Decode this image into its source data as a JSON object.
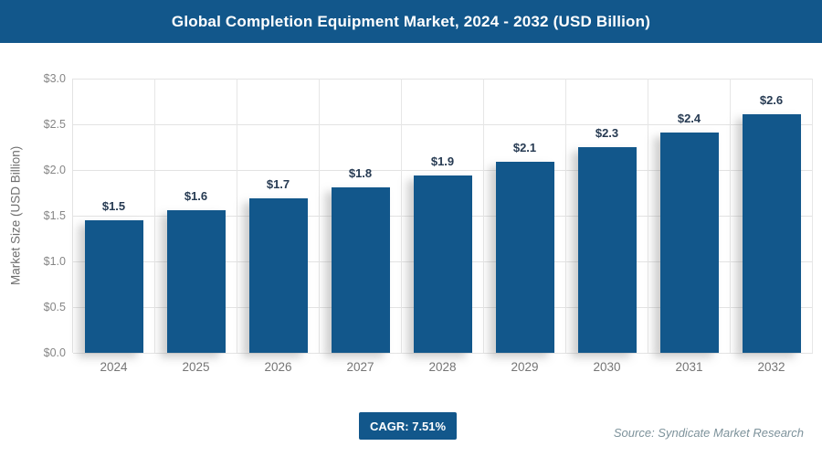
{
  "header": {
    "title": "Global Completion Equipment Market, 2024 - 2032 (USD Billion)"
  },
  "chart_data": {
    "type": "bar",
    "title": "Global Completion Equipment Market, 2024 - 2032 (USD Billion)",
    "categories": [
      "2024",
      "2025",
      "2026",
      "2027",
      "2028",
      "2029",
      "2030",
      "2031",
      "2032"
    ],
    "values": [
      1.5,
      1.6,
      1.7,
      1.8,
      1.9,
      2.1,
      2.3,
      2.4,
      2.6
    ],
    "value_labels": [
      "$1.5",
      "$1.6",
      "$1.7",
      "$1.8",
      "$1.9",
      "$2.1",
      "$2.3",
      "$2.4",
      "$2.6"
    ],
    "plotted_values": [
      1.45,
      1.56,
      1.69,
      1.81,
      1.94,
      2.09,
      2.25,
      2.41,
      2.61
    ],
    "xlabel": "",
    "ylabel": "Market Size (USD Billion)",
    "ylim": [
      0.0,
      3.0
    ],
    "ytick_step": 0.5,
    "ytick_labels_top_to_bottom": [
      "$3.0",
      "$2.5",
      "$2.0",
      "$1.5",
      "$1.0",
      "$0.5",
      "$0.0"
    ],
    "grid": true,
    "legend": "none",
    "bar_color": "#12578b"
  },
  "footer": {
    "cagr_label": "CAGR: 7.51%",
    "source": "Source: Syndicate Market Research"
  },
  "colors": {
    "accent_blue": "#12578b",
    "value_label": "#263a52",
    "tick_text": "#868686",
    "category_text": "#757575",
    "gridline": "#e3e3e3",
    "source_text": "#7d929b",
    "title_text": "#ffffff"
  }
}
